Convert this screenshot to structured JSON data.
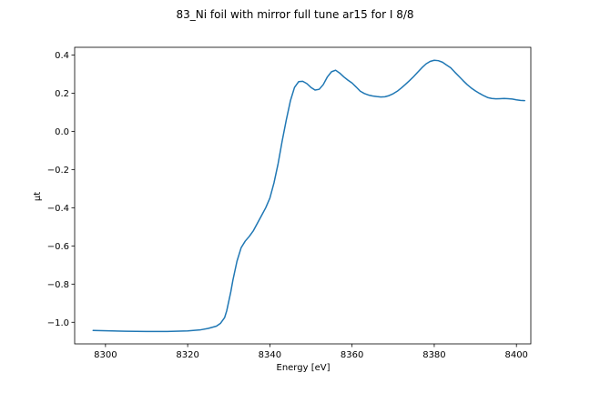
{
  "chart_data": {
    "type": "line",
    "title": "83_Ni foil with mirror full tune ar15 for I 8/8",
    "xlabel": "Energy [eV]",
    "ylabel": "μt",
    "xlim": [
      8292.5,
      8403.5
    ],
    "ylim": [
      -1.113,
      0.44
    ],
    "grid": false,
    "xticks": [
      8300,
      8320,
      8340,
      8360,
      8380,
      8400
    ],
    "yticks": [
      0.4,
      0.2,
      0.0,
      -0.2,
      -0.4,
      -0.6,
      -0.8,
      -1.0
    ],
    "xtick_labels": [
      "8300",
      "8320",
      "8340",
      "8360",
      "8380",
      "8400"
    ],
    "ytick_labels": [
      "0.4",
      "0.2",
      "0.0",
      "−0.2",
      "−0.4",
      "−0.6",
      "−0.8",
      "−1.0"
    ],
    "series": [
      {
        "color": "#1f77b4",
        "x": [
          8297,
          8305,
          8310,
          8315,
          8320,
          8323,
          8325,
          8327,
          8328,
          8329,
          8329.5,
          8330,
          8330.5,
          8331,
          8332,
          8333,
          8334,
          8335,
          8336,
          8337,
          8338,
          8339,
          8340,
          8341,
          8342,
          8343,
          8344,
          8345,
          8346,
          8347,
          8348,
          8349,
          8350,
          8351,
          8352,
          8353,
          8354,
          8355,
          8356,
          8357,
          8358,
          8359,
          8360,
          8361,
          8362,
          8363,
          8364,
          8365,
          8366,
          8367,
          8368,
          8369,
          8370,
          8371,
          8372,
          8373,
          8374,
          8375,
          8376,
          8377,
          8378,
          8379,
          8380,
          8381,
          8382,
          8383,
          8384,
          8385,
          8386,
          8387,
          8388,
          8389,
          8390,
          8391,
          8392,
          8393,
          8394,
          8395,
          8396,
          8397,
          8398,
          8399,
          8400,
          8401,
          8402
        ],
        "y": [
          -1.043,
          -1.047,
          -1.048,
          -1.048,
          -1.045,
          -1.04,
          -1.032,
          -1.02,
          -1.005,
          -0.975,
          -0.94,
          -0.89,
          -0.84,
          -0.78,
          -0.68,
          -0.61,
          -0.575,
          -0.55,
          -0.52,
          -0.48,
          -0.44,
          -0.4,
          -0.35,
          -0.27,
          -0.17,
          -0.05,
          0.06,
          0.16,
          0.23,
          0.26,
          0.262,
          0.25,
          0.23,
          0.216,
          0.22,
          0.245,
          0.285,
          0.312,
          0.32,
          0.305,
          0.285,
          0.268,
          0.253,
          0.232,
          0.21,
          0.198,
          0.19,
          0.185,
          0.182,
          0.18,
          0.181,
          0.187,
          0.197,
          0.21,
          0.227,
          0.246,
          0.266,
          0.287,
          0.31,
          0.333,
          0.353,
          0.366,
          0.372,
          0.37,
          0.362,
          0.347,
          0.333,
          0.31,
          0.288,
          0.266,
          0.245,
          0.227,
          0.212,
          0.199,
          0.187,
          0.177,
          0.172,
          0.17,
          0.171,
          0.172,
          0.171,
          0.169,
          0.165,
          0.162,
          0.161
        ]
      }
    ]
  }
}
